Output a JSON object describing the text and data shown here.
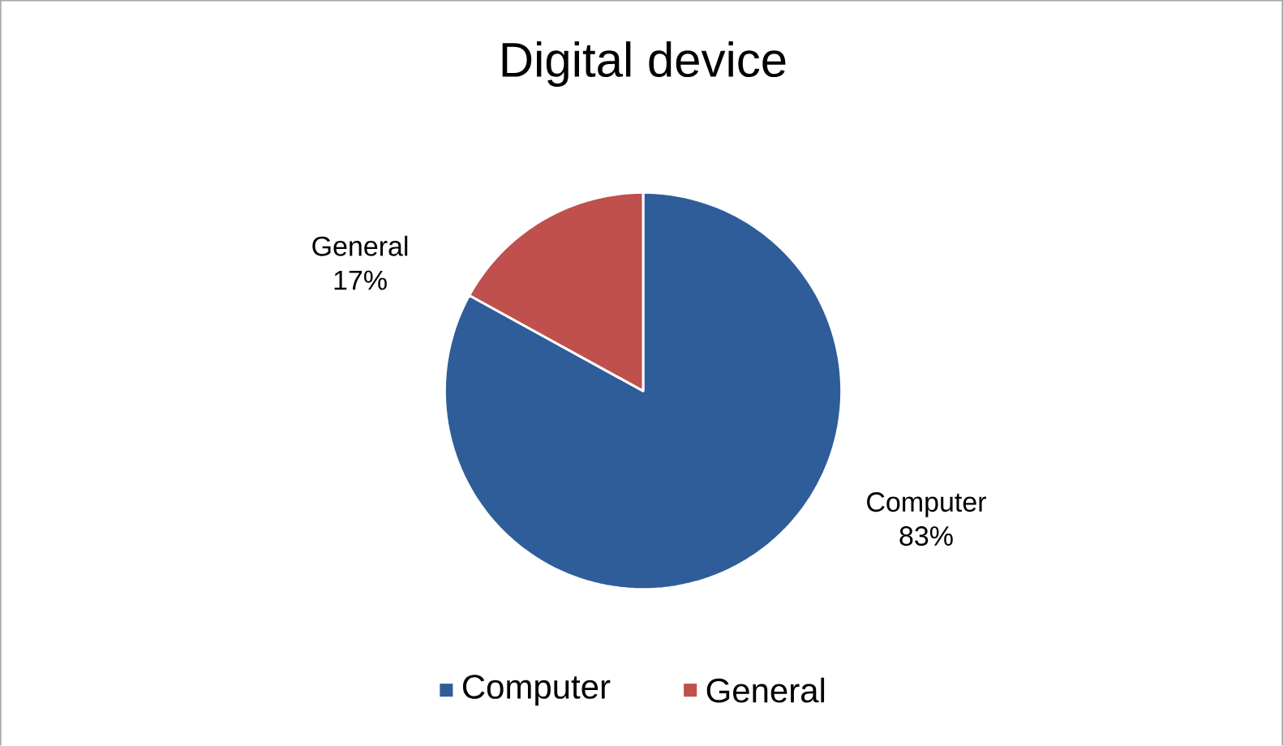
{
  "chart_data": {
    "type": "pie",
    "title": "Digital device",
    "categories": [
      "Computer",
      "General"
    ],
    "values": [
      83,
      17
    ],
    "colors": [
      "#2f5d99",
      "#c0504d"
    ],
    "value_labels": [
      "83%",
      "17%"
    ],
    "legend": "bottom"
  }
}
